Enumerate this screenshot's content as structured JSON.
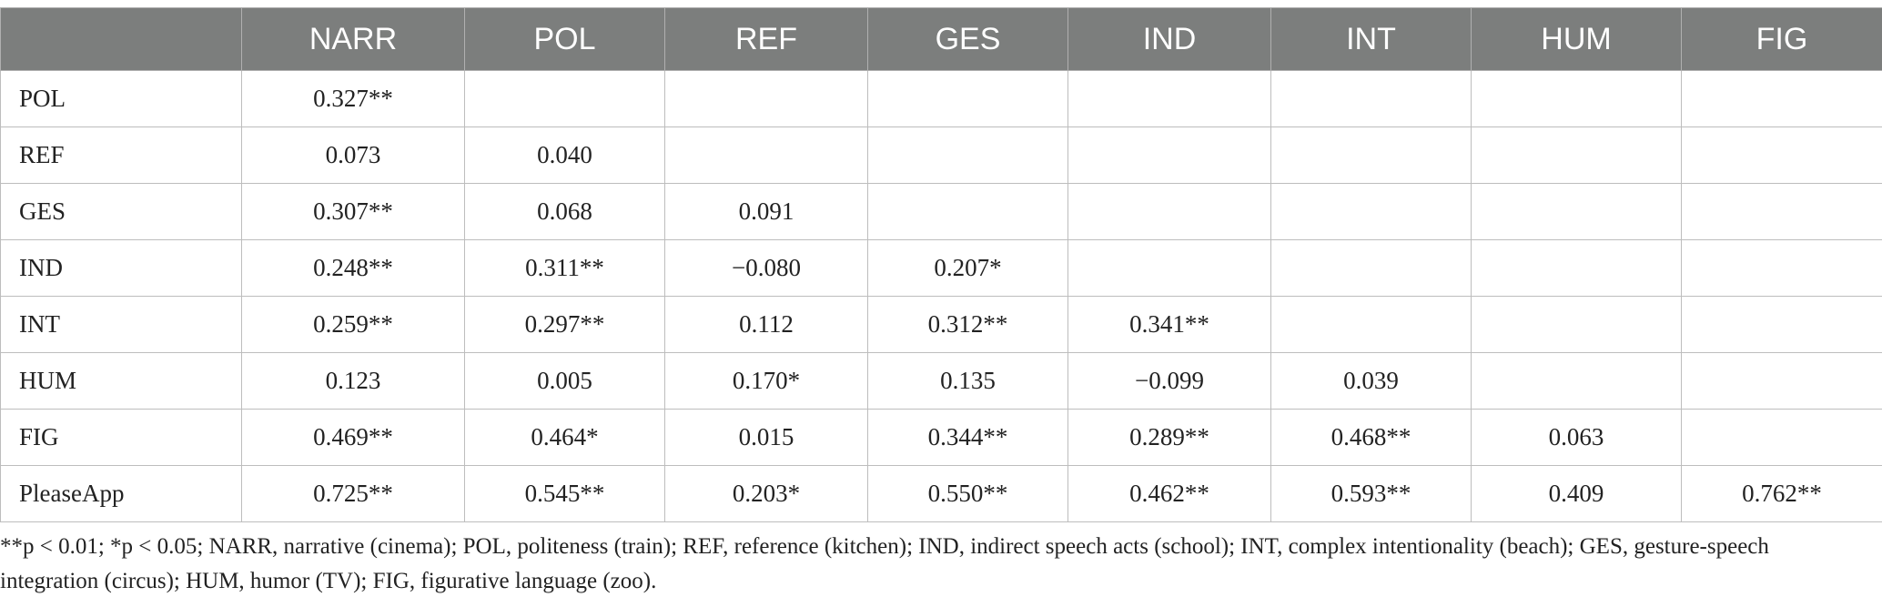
{
  "table": {
    "headers": [
      "",
      "NARR",
      "POL",
      "REF",
      "GES",
      "IND",
      "INT",
      "HUM",
      "FIG"
    ],
    "rows": [
      {
        "label": "POL",
        "cells": [
          "0.327**",
          "",
          "",
          "",
          "",
          "",
          "",
          ""
        ]
      },
      {
        "label": "REF",
        "cells": [
          "0.073",
          "0.040",
          "",
          "",
          "",
          "",
          "",
          ""
        ]
      },
      {
        "label": "GES",
        "cells": [
          "0.307**",
          "0.068",
          "0.091",
          "",
          "",
          "",
          "",
          ""
        ]
      },
      {
        "label": "IND",
        "cells": [
          "0.248**",
          "0.311**",
          "−0.080",
          "0.207*",
          "",
          "",
          "",
          ""
        ]
      },
      {
        "label": "INT",
        "cells": [
          "0.259**",
          "0.297**",
          "0.112",
          "0.312**",
          "0.341**",
          "",
          "",
          ""
        ]
      },
      {
        "label": "HUM",
        "cells": [
          "0.123",
          "0.005",
          "0.170*",
          "0.135",
          "−0.099",
          "0.039",
          "",
          ""
        ]
      },
      {
        "label": "FIG",
        "cells": [
          "0.469**",
          "0.464*",
          "0.015",
          "0.344**",
          "0.289**",
          "0.468**",
          "0.063",
          ""
        ]
      },
      {
        "label": "PleaseApp",
        "cells": [
          "0.725**",
          "0.545**",
          "0.203*",
          "0.550**",
          "0.462**",
          "0.593**",
          "0.409",
          "0.762**"
        ]
      }
    ]
  },
  "footnote": {
    "line1": "**p < 0.01; *p < 0.05; NARR, narrative (cinema); POL, politeness (train); REF, reference (kitchen); IND, indirect speech acts (school); INT, complex intentionality (beach); GES, gesture-speech",
    "line2": "integration (circus); HUM, humor (TV); FIG, figurative language (zoo)."
  }
}
